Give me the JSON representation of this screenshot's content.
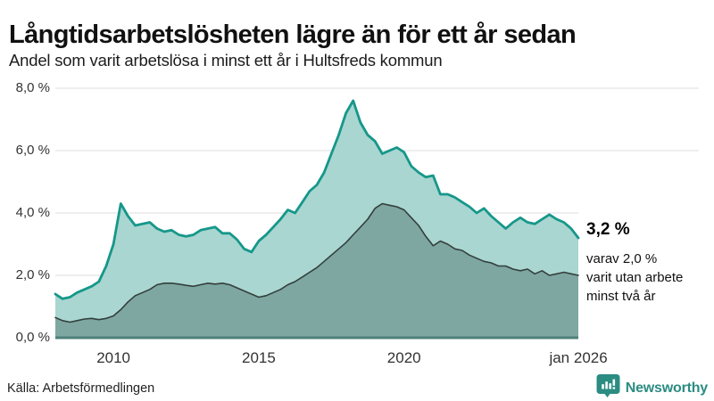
{
  "header": {
    "title": "Långtidsarbetslösheten lägre än för ett år sedan",
    "subtitle": "Andel som varit arbetslösa i minst ett år i Hultsfreds kommun"
  },
  "annotation": {
    "value": "3,2 %",
    "note": "varav 2,0 %\nvarit utan arbete\nminst två år"
  },
  "footer": {
    "source": "Källa: Arbetsförmedlingen",
    "brand": "Newsworthy"
  },
  "colors": {
    "series1_line": "#16978a",
    "series1_fill": "#a9d6d0",
    "series2_line": "#333f3d",
    "series2_fill": "#7ea7a1",
    "baseline": "#4f807a",
    "gridline": "#e3e3e3",
    "brand_teal": "#2b8c82"
  },
  "chart_data": {
    "type": "area",
    "title": "Långtidsarbetslösheten lägre än för ett år sedan",
    "subtitle": "Andel som varit arbetslösa i minst ett år i Hultsfreds kommun",
    "unit": "%",
    "ylim": [
      0,
      8
    ],
    "grid": true,
    "x_start": 2008,
    "x_end": 2026,
    "interval_years": 0.25,
    "y_ticks": [
      {
        "value": 8,
        "label": "8,0 %"
      },
      {
        "value": 6,
        "label": "6,0 %"
      },
      {
        "value": 4,
        "label": "4,0 %"
      },
      {
        "value": 2,
        "label": "2,0 %"
      },
      {
        "value": 0,
        "label": "0,0 %"
      }
    ],
    "x_ticks": [
      {
        "t": 2010,
        "label": "2010"
      },
      {
        "t": 2015,
        "label": "2015"
      },
      {
        "t": 2020,
        "label": "2020"
      },
      {
        "t": 2026,
        "label": "jan 2026"
      }
    ],
    "series": [
      {
        "name": "Andel arbetslösa minst ett år",
        "last_value_label": "3,2 %",
        "values": [
          1.4,
          1.25,
          1.3,
          1.45,
          1.55,
          1.65,
          1.8,
          2.3,
          3.0,
          4.3,
          3.9,
          3.6,
          3.65,
          3.7,
          3.5,
          3.4,
          3.45,
          3.3,
          3.25,
          3.3,
          3.45,
          3.5,
          3.55,
          3.35,
          3.35,
          3.15,
          2.85,
          2.75,
          3.1,
          3.3,
          3.55,
          3.8,
          4.1,
          4.0,
          4.35,
          4.7,
          4.9,
          5.3,
          5.9,
          6.5,
          7.2,
          7.6,
          6.9,
          6.5,
          6.3,
          5.9,
          6.0,
          6.1,
          5.95,
          5.5,
          5.3,
          5.15,
          5.2,
          4.6,
          4.6,
          4.5,
          4.35,
          4.2,
          4.0,
          4.15,
          3.9,
          3.7,
          3.5,
          3.7,
          3.85,
          3.7,
          3.65,
          3.8,
          3.95,
          3.8,
          3.7,
          3.5,
          3.2
        ]
      },
      {
        "name": "varav arbetslösa minst två år",
        "last_value_label": "2,0 %",
        "values": [
          0.65,
          0.55,
          0.5,
          0.55,
          0.6,
          0.62,
          0.58,
          0.62,
          0.7,
          0.9,
          1.15,
          1.35,
          1.45,
          1.55,
          1.7,
          1.75,
          1.75,
          1.72,
          1.68,
          1.65,
          1.7,
          1.75,
          1.72,
          1.75,
          1.7,
          1.6,
          1.5,
          1.4,
          1.3,
          1.35,
          1.45,
          1.55,
          1.7,
          1.8,
          1.95,
          2.1,
          2.25,
          2.45,
          2.65,
          2.85,
          3.05,
          3.3,
          3.55,
          3.8,
          4.15,
          4.3,
          4.25,
          4.2,
          4.1,
          3.85,
          3.6,
          3.25,
          2.95,
          3.1,
          3.0,
          2.85,
          2.8,
          2.65,
          2.55,
          2.45,
          2.4,
          2.3,
          2.3,
          2.2,
          2.15,
          2.2,
          2.05,
          2.15,
          2.0,
          2.05,
          2.1,
          2.05,
          2.0
        ]
      }
    ]
  }
}
